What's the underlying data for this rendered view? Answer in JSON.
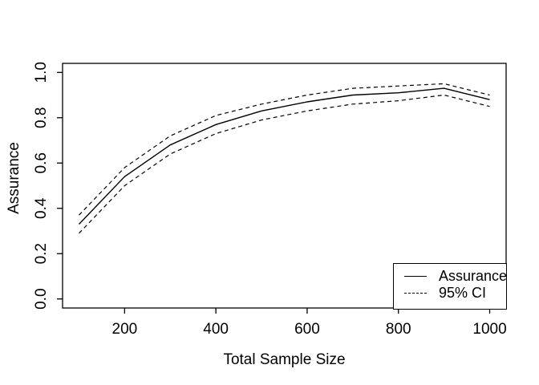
{
  "chart_data": {
    "type": "line",
    "title": "",
    "xlabel": "Total Sample Size",
    "ylabel": "Assurance",
    "x": [
      100,
      200,
      300,
      400,
      500,
      600,
      700,
      800,
      900,
      1000
    ],
    "series": [
      {
        "name": "Assurance",
        "line": "solid",
        "values": [
          0.33,
          0.54,
          0.68,
          0.77,
          0.83,
          0.87,
          0.9,
          0.91,
          0.93,
          0.88
        ]
      },
      {
        "name": "95% CI upper",
        "line": "dashed",
        "values": [
          0.37,
          0.58,
          0.72,
          0.81,
          0.86,
          0.9,
          0.93,
          0.94,
          0.95,
          0.9
        ]
      },
      {
        "name": "95% CI lower",
        "line": "dashed",
        "values": [
          0.29,
          0.5,
          0.64,
          0.73,
          0.79,
          0.83,
          0.86,
          0.875,
          0.9,
          0.85
        ]
      }
    ],
    "xticks": [
      "200",
      "400",
      "600",
      "800",
      "1000"
    ],
    "yticks": [
      "0.0",
      "0.2",
      "0.4",
      "0.6",
      "0.8",
      "1.0"
    ],
    "xlim": [
      64,
      1036
    ],
    "ylim": [
      -0.04,
      1.04
    ],
    "grid": false,
    "legend": {
      "position": "bottomright",
      "entries": [
        {
          "label": "Assurance",
          "line": "solid"
        },
        {
          "label": "95% CI",
          "line": "dashed"
        }
      ]
    },
    "colors": {
      "line": "#000000",
      "background": "#ffffff",
      "text": "#000000"
    }
  }
}
